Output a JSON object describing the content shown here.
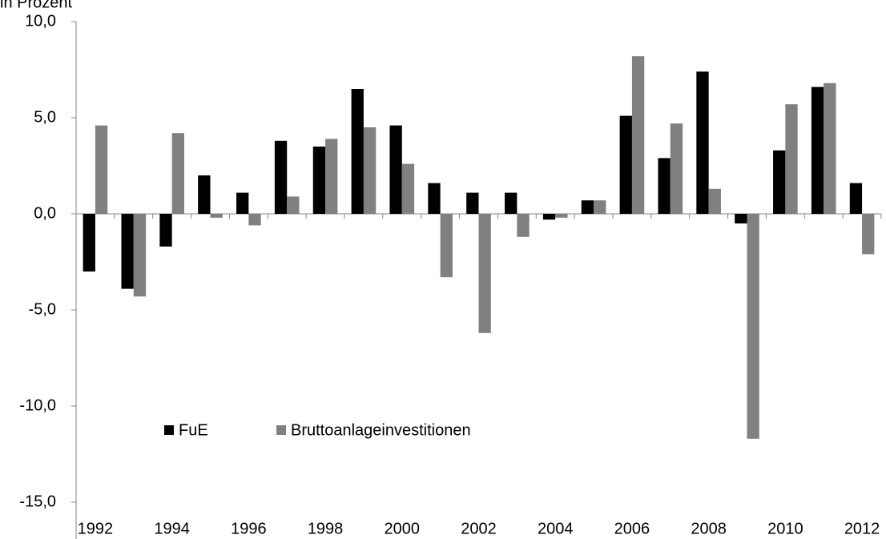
{
  "chart_data": {
    "type": "bar",
    "title": "in Prozent",
    "categories": [
      "1992",
      null,
      "1994",
      null,
      "1996",
      null,
      "1998",
      null,
      "2000",
      null,
      "2002",
      null,
      "2004",
      null,
      "2006",
      null,
      "2008",
      null,
      "2010",
      null,
      "2012"
    ],
    "series": [
      {
        "name": "FuE",
        "color": "#000000",
        "values": [
          -3.0,
          -3.9,
          -1.7,
          2.0,
          1.1,
          3.8,
          3.5,
          6.5,
          4.6,
          1.6,
          1.1,
          1.1,
          -0.3,
          0.7,
          5.1,
          2.9,
          7.4,
          -0.5,
          3.3,
          6.6,
          1.6
        ]
      },
      {
        "name": "Bruttoanlageinvestitionen",
        "color": "#808080",
        "values": [
          4.6,
          -4.3,
          4.2,
          -0.2,
          -0.6,
          0.9,
          3.9,
          4.5,
          2.6,
          -3.3,
          -6.2,
          -1.2,
          -0.2,
          0.7,
          8.2,
          4.7,
          1.3,
          -11.7,
          5.7,
          6.8,
          -2.1
        ]
      }
    ],
    "ylim": [
      -15,
      10
    ],
    "yticks": [
      {
        "value": -15,
        "label": "-15,0"
      },
      {
        "value": -10,
        "label": "-10,0"
      },
      {
        "value": -5,
        "label": "-5,0"
      },
      {
        "value": 0,
        "label": "0,0"
      },
      {
        "value": 5,
        "label": "5,0"
      },
      {
        "value": 10,
        "label": "10,0"
      }
    ],
    "grid": false,
    "legend": "lower left"
  }
}
